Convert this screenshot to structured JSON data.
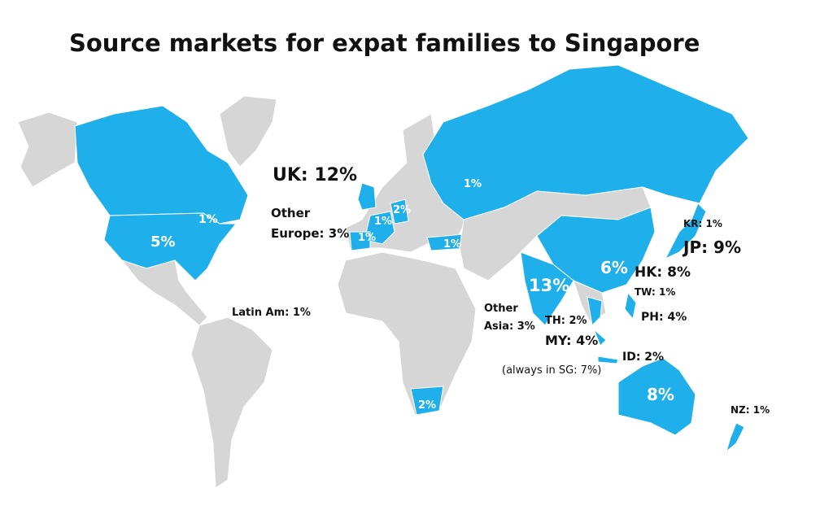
{
  "title": "Source markets for expat families to Singapore",
  "labels": {
    "uk": "UK: 12%",
    "other_europe": [
      "Other",
      "Europe: 3%"
    ],
    "latin_am": "Latin Am: 1%",
    "canada": "1%",
    "usa": "5%",
    "russia": "1%",
    "france": "1%",
    "germany": "1%",
    "netherlands": "2%",
    "turkey": "1%",
    "india": "13%",
    "china": "6%",
    "australia": "8%",
    "south_africa": "2%",
    "kr": "KR: 1%",
    "jp": "JP: 9%",
    "hk": "HK: 8%",
    "tw": "TW: 1%",
    "ph": "PH: 4%",
    "other_asia": [
      "Other",
      "Asia: 3%"
    ],
    "th": "TH: 2%",
    "my": "MY: 4%",
    "sg": "(always in SG: 7%)",
    "id": "ID: 2%",
    "nz": "NZ: 1%"
  }
}
